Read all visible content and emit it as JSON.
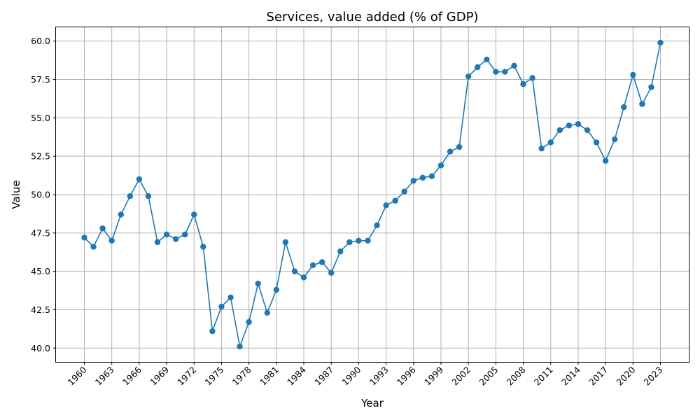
{
  "chart_data": {
    "type": "line",
    "title": "Services, value added (% of GDP)",
    "xlabel": "Year",
    "ylabel": "Value",
    "grid": true,
    "marker": "circle",
    "line_color": "#1f77b4",
    "xlim": [
      1956.9,
      2026.1
    ],
    "ylim": [
      39.1,
      60.9
    ],
    "xticks": [
      1960,
      1963,
      1966,
      1969,
      1972,
      1975,
      1978,
      1981,
      1984,
      1987,
      1990,
      1993,
      1996,
      1999,
      2002,
      2005,
      2008,
      2011,
      2014,
      2017,
      2020,
      2023
    ],
    "yticks": [
      "40.0",
      "42.5",
      "45.0",
      "47.5",
      "50.0",
      "52.5",
      "55.0",
      "57.5",
      "60.0"
    ],
    "series": [
      {
        "x": [
          1960,
          1961,
          1962,
          1963,
          1964,
          1965,
          1966,
          1967,
          1968,
          1969,
          1970,
          1971,
          1972,
          1973,
          1974,
          1975,
          1976,
          1977,
          1978,
          1979,
          1980,
          1981,
          1982,
          1983,
          1984,
          1985,
          1986,
          1987,
          1988,
          1989,
          1990,
          1991,
          1992,
          1993,
          1994,
          1995,
          1996,
          1997,
          1998,
          1999,
          2000,
          2001,
          2002,
          2003,
          2004,
          2005,
          2006,
          2007,
          2008,
          2009,
          2010,
          2011,
          2012,
          2013,
          2014,
          2015,
          2016,
          2017,
          2018,
          2019,
          2020,
          2021,
          2022,
          2023
        ],
        "y": [
          47.2,
          46.6,
          47.8,
          47.0,
          48.7,
          49.9,
          51.0,
          49.9,
          46.9,
          47.4,
          47.1,
          47.4,
          48.7,
          46.6,
          41.1,
          42.7,
          43.3,
          40.1,
          41.7,
          44.2,
          42.3,
          43.8,
          46.9,
          45.0,
          44.6,
          45.4,
          45.6,
          44.9,
          46.3,
          46.9,
          47.0,
          47.0,
          48.0,
          49.3,
          49.6,
          50.2,
          50.9,
          51.1,
          51.2,
          51.9,
          52.8,
          53.1,
          57.7,
          58.3,
          58.8,
          58.0,
          58.0,
          58.4,
          57.2,
          57.6,
          53.0,
          53.4,
          54.2,
          54.5,
          54.6,
          54.2,
          53.4,
          52.2,
          53.6,
          55.7,
          57.8,
          55.9,
          57.0,
          59.9
        ]
      }
    ]
  }
}
